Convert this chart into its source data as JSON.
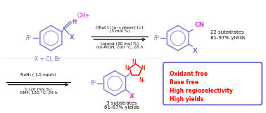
{
  "bg_color": "#ffffff",
  "blue_color": "#7777cc",
  "purple_color": "#cc44cc",
  "red_color": "#ee0000",
  "black_color": "#000000",
  "box_edge_color": "#5555cc",
  "condition1_line1": "[{RuCl₂(p-cymene)}₂]",
  "condition1_line2": "(3 mol %)",
  "condition1_line3": "Ligand (30 mol %)",
  "condition1_line4": "iso-PrOH, 100 °C, 16 h",
  "condition2_line1": "NaN₃ ( 1.5 equiv)",
  "condition2_line2": "I₂ (20 mol %)",
  "condition2_line3": "DMF, 120 °C, 24 h",
  "product1_sub": "22 substrates",
  "product1_yield": "81-97% yields",
  "product2_sub": "3 substrates",
  "product2_yield": "61-67% yields",
  "box_lines": [
    "Oxidant free",
    "Base free",
    "High regioselectivity",
    "High yields"
  ],
  "x_label": "X = Cl, Br",
  "figsize": [
    3.78,
    1.61
  ],
  "dpi": 100
}
